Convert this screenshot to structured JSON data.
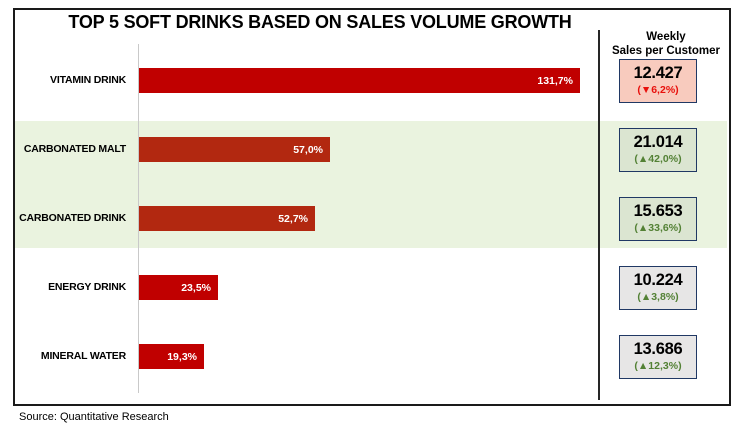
{
  "chart_data": {
    "type": "bar",
    "orientation": "horizontal",
    "title": "TOP 5 SOFT DRINKS BASED ON SALES VOLUME GROWTH",
    "categories": [
      "VITAMIN DRINK",
      "CARBONATED MALT",
      "CARBONATED DRINK",
      "ENERGY DRINK",
      "MINERAL WATER"
    ],
    "values": [
      131.7,
      57.0,
      52.7,
      23.5,
      19.3
    ],
    "value_labels": [
      "131,7%",
      "57,0%",
      "52,7%",
      "23,5%",
      "19,3%"
    ],
    "unit": "%",
    "xlim": [
      0,
      140
    ],
    "grid": false,
    "bar_colors": [
      "#C00000",
      "#B22810",
      "#B22810",
      "#C00000",
      "#C00000"
    ],
    "highlighted_categories": [
      "CARBONATED MALT",
      "CARBONATED DRINK"
    ],
    "band_color": "#EAF3DF",
    "source": "Source: Quantitative Research",
    "side_panel": {
      "header_line1": "Weekly",
      "header_line2": "Sales per Customer",
      "up_color": "#538135",
      "down_color": "#E8100C",
      "cards": [
        {
          "value": "12.427",
          "change": "(▼6,2%)",
          "direction": "down",
          "bg": "#F8CBBE"
        },
        {
          "value": "21.014",
          "change": "(▲42,0%)",
          "direction": "up",
          "bg": "#DBE5D1"
        },
        {
          "value": "15.653",
          "change": "(▲33,6%)",
          "direction": "up",
          "bg": "#DBE5D1"
        },
        {
          "value": "10.224",
          "change": "(▲3,8%)",
          "direction": "up",
          "bg": "#E7E6E6"
        },
        {
          "value": "13.686",
          "change": "(▲12,3%)",
          "direction": "up",
          "bg": "#E7E6E6"
        }
      ]
    }
  }
}
